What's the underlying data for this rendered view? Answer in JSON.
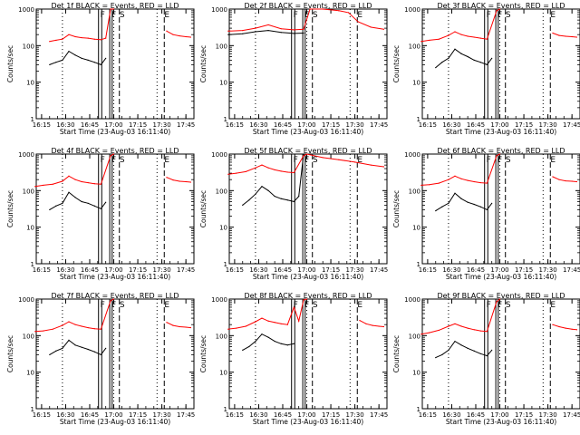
{
  "figure": {
    "ylabel": "Counts/sec",
    "xlabel": "Start Time (23-Aug-03 16:11:40)",
    "x_ticks": [
      "16:15",
      "16:30",
      "16:45",
      "17:00",
      "17:15",
      "17:30",
      "17:45"
    ],
    "y_ticks": [
      "1",
      "10",
      "100",
      "1000"
    ],
    "colors": {
      "events": "#000000",
      "lld": "#ff0000",
      "axes": "#000000"
    }
  },
  "chart_data": [
    {
      "type": "line",
      "title": "Det 1f BLACK = Events, RED = LLD",
      "xlabel": "Start Time (23-Aug-03 16:11:40)",
      "ylabel": "Counts/sec",
      "y_scale": "log",
      "ylim": [
        1,
        1000
      ],
      "x_range": [
        "16:11:40",
        "17:50"
      ],
      "grid": false,
      "series": [
        {
          "color": "#000000",
          "x": [
            "16:20",
            "16:24",
            "16:28",
            "16:32",
            "16:36",
            "16:40",
            "16:44",
            "16:48",
            "16:52",
            "16:55"
          ],
          "y": [
            30,
            35,
            40,
            70,
            55,
            45,
            40,
            35,
            30,
            45
          ]
        },
        {
          "color": "#ff0000",
          "x": [
            "16:20",
            "16:24",
            "16:28",
            "16:32",
            "16:36",
            "16:40",
            "16:44",
            "16:48",
            "16:52",
            "16:55",
            "16:58",
            "17:00"
          ],
          "y": [
            130,
            140,
            150,
            200,
            175,
            165,
            160,
            150,
            145,
            160,
            1000,
            1000
          ]
        },
        {
          "color": "#ff0000",
          "x": [
            "17:33",
            "17:37",
            "17:41",
            "17:45",
            "17:48"
          ],
          "y": [
            250,
            200,
            185,
            175,
            170
          ]
        }
      ],
      "annotations": [
        "F",
        "F",
        "S",
        "E"
      ]
    },
    {
      "type": "line",
      "title": "Det 2f BLACK = Events, RED = LLD",
      "xlabel": "Start Time (23-Aug-03 16:11:40)",
      "ylabel": "Counts/sec",
      "y_scale": "log",
      "ylim": [
        1,
        1000
      ],
      "x_range": [
        "16:11:40",
        "17:50"
      ],
      "grid": false,
      "series": [
        {
          "color": "#000000",
          "x": [
            "16:11",
            "16:20",
            "16:28",
            "16:36",
            "16:44",
            "16:52",
            "16:58"
          ],
          "y": [
            200,
            210,
            240,
            260,
            230,
            215,
            220
          ]
        },
        {
          "color": "#ff0000",
          "x": [
            "16:11",
            "16:20",
            "16:28",
            "16:36",
            "16:44",
            "16:52",
            "16:58",
            "17:02",
            "17:10",
            "17:20",
            "17:26",
            "17:32",
            "17:40",
            "17:48"
          ],
          "y": [
            250,
            260,
            300,
            370,
            290,
            270,
            280,
            1000,
            1000,
            900,
            800,
            450,
            320,
            280
          ]
        }
      ],
      "annotations": [
        "F",
        "F",
        "S",
        "E"
      ]
    },
    {
      "type": "line",
      "title": "Det 3f BLACK = Events, RED = LLD",
      "xlabel": "Start Time (23-Aug-03 16:11:40)",
      "ylabel": "Counts/sec",
      "y_scale": "log",
      "ylim": [
        1,
        1000
      ],
      "x_range": [
        "16:11:40",
        "17:50"
      ],
      "grid": false,
      "series": [
        {
          "color": "#000000",
          "x": [
            "16:20",
            "16:24",
            "16:28",
            "16:32",
            "16:36",
            "16:40",
            "16:44",
            "16:48",
            "16:52",
            "16:55"
          ],
          "y": [
            25,
            35,
            45,
            80,
            60,
            50,
            40,
            35,
            30,
            45
          ]
        },
        {
          "color": "#ff0000",
          "x": [
            "16:11",
            "16:16",
            "16:22",
            "16:28",
            "16:32",
            "16:36",
            "16:40",
            "16:44",
            "16:48",
            "16:52",
            "16:58",
            "17:00"
          ],
          "y": [
            130,
            140,
            150,
            190,
            240,
            200,
            180,
            170,
            160,
            150,
            900,
            1000
          ]
        },
        {
          "color": "#ff0000",
          "x": [
            "17:33",
            "17:37",
            "17:41",
            "17:45",
            "17:48"
          ],
          "y": [
            220,
            190,
            180,
            175,
            170
          ]
        }
      ],
      "annotations": [
        "F",
        "F",
        "S",
        "E"
      ]
    },
    {
      "type": "line",
      "title": "Det 4f BLACK = Events, RED = LLD",
      "xlabel": "Start Time (23-Aug-03 16:11:40)",
      "ylabel": "Counts/sec",
      "y_scale": "log",
      "ylim": [
        1,
        1000
      ],
      "x_range": [
        "16:11:40",
        "17:50"
      ],
      "grid": false,
      "series": [
        {
          "color": "#000000",
          "x": [
            "16:20",
            "16:24",
            "16:28",
            "16:32",
            "16:36",
            "16:40",
            "16:44",
            "16:48",
            "16:52",
            "16:55"
          ],
          "y": [
            30,
            38,
            45,
            90,
            65,
            50,
            45,
            38,
            32,
            48
          ]
        },
        {
          "color": "#ff0000",
          "x": [
            "16:11",
            "16:16",
            "16:22",
            "16:28",
            "16:32",
            "16:36",
            "16:40",
            "16:44",
            "16:48",
            "16:52",
            "16:58",
            "17:00"
          ],
          "y": [
            130,
            140,
            150,
            180,
            250,
            200,
            175,
            165,
            155,
            150,
            900,
            1000
          ]
        },
        {
          "color": "#ff0000",
          "x": [
            "17:33",
            "17:37",
            "17:41",
            "17:45",
            "17:48"
          ],
          "y": [
            230,
            195,
            180,
            175,
            170
          ]
        }
      ],
      "annotations": [
        "F",
        "F",
        "S",
        "E"
      ]
    },
    {
      "type": "line",
      "title": "Det 5f BLACK = Events, RED = LLD",
      "xlabel": "Start Time (23-Aug-03 16:11:40)",
      "ylabel": "Counts/sec",
      "y_scale": "log",
      "ylim": [
        1,
        1000
      ],
      "x_range": [
        "16:11:40",
        "17:50"
      ],
      "grid": false,
      "series": [
        {
          "color": "#000000",
          "x": [
            "16:20",
            "16:24",
            "16:28",
            "16:32",
            "16:36",
            "16:40",
            "16:44",
            "16:48",
            "16:52",
            "16:55",
            "16:58"
          ],
          "y": [
            40,
            55,
            80,
            130,
            100,
            70,
            60,
            55,
            50,
            70,
            1000
          ]
        },
        {
          "color": "#ff0000",
          "x": [
            "16:11",
            "16:16",
            "16:22",
            "16:28",
            "16:32",
            "16:36",
            "16:40",
            "16:44",
            "16:48",
            "16:52",
            "16:58",
            "17:00",
            "17:10",
            "17:20",
            "17:30",
            "17:40",
            "17:48"
          ],
          "y": [
            280,
            300,
            330,
            420,
            500,
            420,
            370,
            340,
            320,
            310,
            900,
            1000,
            800,
            700,
            600,
            500,
            450
          ]
        }
      ],
      "annotations": [
        "F",
        "F",
        "S",
        "E"
      ]
    },
    {
      "type": "line",
      "title": "Det 6f BLACK = Events, RED = LLD",
      "xlabel": "Start Time (23-Aug-03 16:11:40)",
      "ylabel": "Counts/sec",
      "y_scale": "log",
      "ylim": [
        1,
        1000
      ],
      "x_range": [
        "16:11:40",
        "17:50"
      ],
      "grid": false,
      "series": [
        {
          "color": "#000000",
          "x": [
            "16:20",
            "16:24",
            "16:28",
            "16:32",
            "16:36",
            "16:40",
            "16:44",
            "16:48",
            "16:52",
            "16:55"
          ],
          "y": [
            28,
            36,
            45,
            85,
            60,
            48,
            42,
            36,
            30,
            45
          ]
        },
        {
          "color": "#ff0000",
          "x": [
            "16:11",
            "16:16",
            "16:22",
            "16:28",
            "16:32",
            "16:36",
            "16:40",
            "16:44",
            "16:48",
            "16:52",
            "16:58",
            "17:00"
          ],
          "y": [
            140,
            145,
            160,
            200,
            250,
            210,
            190,
            175,
            165,
            160,
            900,
            1000
          ]
        },
        {
          "color": "#ff0000",
          "x": [
            "17:33",
            "17:37",
            "17:41",
            "17:45",
            "17:48"
          ],
          "y": [
            240,
            200,
            185,
            180,
            175
          ]
        }
      ],
      "annotations": [
        "F",
        "F",
        "S",
        "E"
      ]
    },
    {
      "type": "line",
      "title": "Det 7f BLACK = Events, RED = LLD",
      "xlabel": "Start Time (23-Aug-03 16:11:40)",
      "ylabel": "Counts/sec",
      "y_scale": "log",
      "ylim": [
        1,
        1000
      ],
      "x_range": [
        "16:11:40",
        "17:50"
      ],
      "grid": false,
      "series": [
        {
          "color": "#000000",
          "x": [
            "16:20",
            "16:24",
            "16:28",
            "16:32",
            "16:36",
            "16:40",
            "16:44",
            "16:48",
            "16:52",
            "16:55"
          ],
          "y": [
            30,
            38,
            45,
            75,
            55,
            48,
            42,
            36,
            30,
            45
          ]
        },
        {
          "color": "#ff0000",
          "x": [
            "16:11",
            "16:16",
            "16:22",
            "16:28",
            "16:32",
            "16:36",
            "16:40",
            "16:44",
            "16:48",
            "16:52",
            "16:58",
            "17:00"
          ],
          "y": [
            130,
            135,
            150,
            190,
            240,
            200,
            180,
            165,
            155,
            150,
            900,
            1000
          ]
        },
        {
          "color": "#ff0000",
          "x": [
            "17:33",
            "17:37",
            "17:41",
            "17:45",
            "17:48"
          ],
          "y": [
            230,
            190,
            175,
            170,
            165
          ]
        }
      ],
      "annotations": [
        "F",
        "F",
        "S",
        "E"
      ]
    },
    {
      "type": "line",
      "title": "Det 8f BLACK = Events, RED = LLD",
      "xlabel": "Start Time (23-Aug-03 16:11:40)",
      "ylabel": "Counts/sec",
      "y_scale": "log",
      "ylim": [
        1,
        1000
      ],
      "x_range": [
        "16:11:40",
        "17:50"
      ],
      "grid": false,
      "series": [
        {
          "color": "#000000",
          "x": [
            "16:20",
            "16:24",
            "16:28",
            "16:32",
            "16:36",
            "16:40",
            "16:44",
            "16:48",
            "16:52"
          ],
          "y": [
            40,
            50,
            70,
            110,
            90,
            70,
            60,
            55,
            60
          ]
        },
        {
          "color": "#ff0000",
          "x": [
            "16:11",
            "16:16",
            "16:22",
            "16:28",
            "16:32",
            "16:36",
            "16:40",
            "16:44",
            "16:48",
            "16:52",
            "16:55",
            "16:58",
            "17:00"
          ],
          "y": [
            150,
            160,
            180,
            240,
            300,
            250,
            230,
            210,
            200,
            600,
            250,
            950,
            1000
          ]
        },
        {
          "color": "#ff0000",
          "x": [
            "17:33",
            "17:37",
            "17:41",
            "17:45",
            "17:48"
          ],
          "y": [
            260,
            210,
            190,
            180,
            175
          ]
        }
      ],
      "annotations": [
        "F",
        "F",
        "S",
        "E"
      ]
    },
    {
      "type": "line",
      "title": "Det 9f BLACK = Events, RED = LLD",
      "xlabel": "Start Time (23-Aug-03 16:11:40)",
      "ylabel": "Counts/sec",
      "y_scale": "log",
      "ylim": [
        1,
        1000
      ],
      "x_range": [
        "16:11:40",
        "17:50"
      ],
      "grid": false,
      "series": [
        {
          "color": "#000000",
          "x": [
            "16:20",
            "16:24",
            "16:28",
            "16:32",
            "16:36",
            "16:40",
            "16:44",
            "16:48",
            "16:52",
            "16:55"
          ],
          "y": [
            25,
            30,
            40,
            70,
            55,
            45,
            38,
            32,
            28,
            40
          ]
        },
        {
          "color": "#ff0000",
          "x": [
            "16:11",
            "16:16",
            "16:22",
            "16:28",
            "16:32",
            "16:36",
            "16:40",
            "16:44",
            "16:48",
            "16:52",
            "16:58",
            "17:00"
          ],
          "y": [
            110,
            120,
            140,
            180,
            210,
            180,
            160,
            145,
            135,
            130,
            850,
            1000
          ]
        },
        {
          "color": "#ff0000",
          "x": [
            "17:33",
            "17:37",
            "17:41",
            "17:45",
            "17:48"
          ],
          "y": [
            200,
            175,
            160,
            150,
            145
          ]
        }
      ],
      "annotations": [
        "F",
        "F",
        "S",
        "E"
      ]
    }
  ]
}
